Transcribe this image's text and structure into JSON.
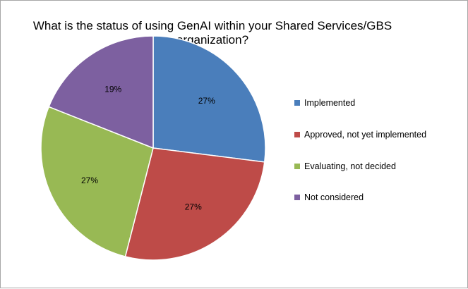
{
  "chart_data": {
    "type": "pie",
    "title": "What is the status of using GenAI within your Shared Services/GBS organization?",
    "categories": [
      "Implemented",
      "Approved, not yet implemented",
      "Evaluating, not decided",
      "Not considered"
    ],
    "values": [
      27,
      27,
      27,
      19
    ],
    "labels": [
      "27%",
      "27%",
      "27%",
      "19%"
    ],
    "colors": [
      "#4a7ebb",
      "#be4b48",
      "#98b954",
      "#7d60a0"
    ],
    "legend": "right",
    "start": "top, clockwise"
  }
}
